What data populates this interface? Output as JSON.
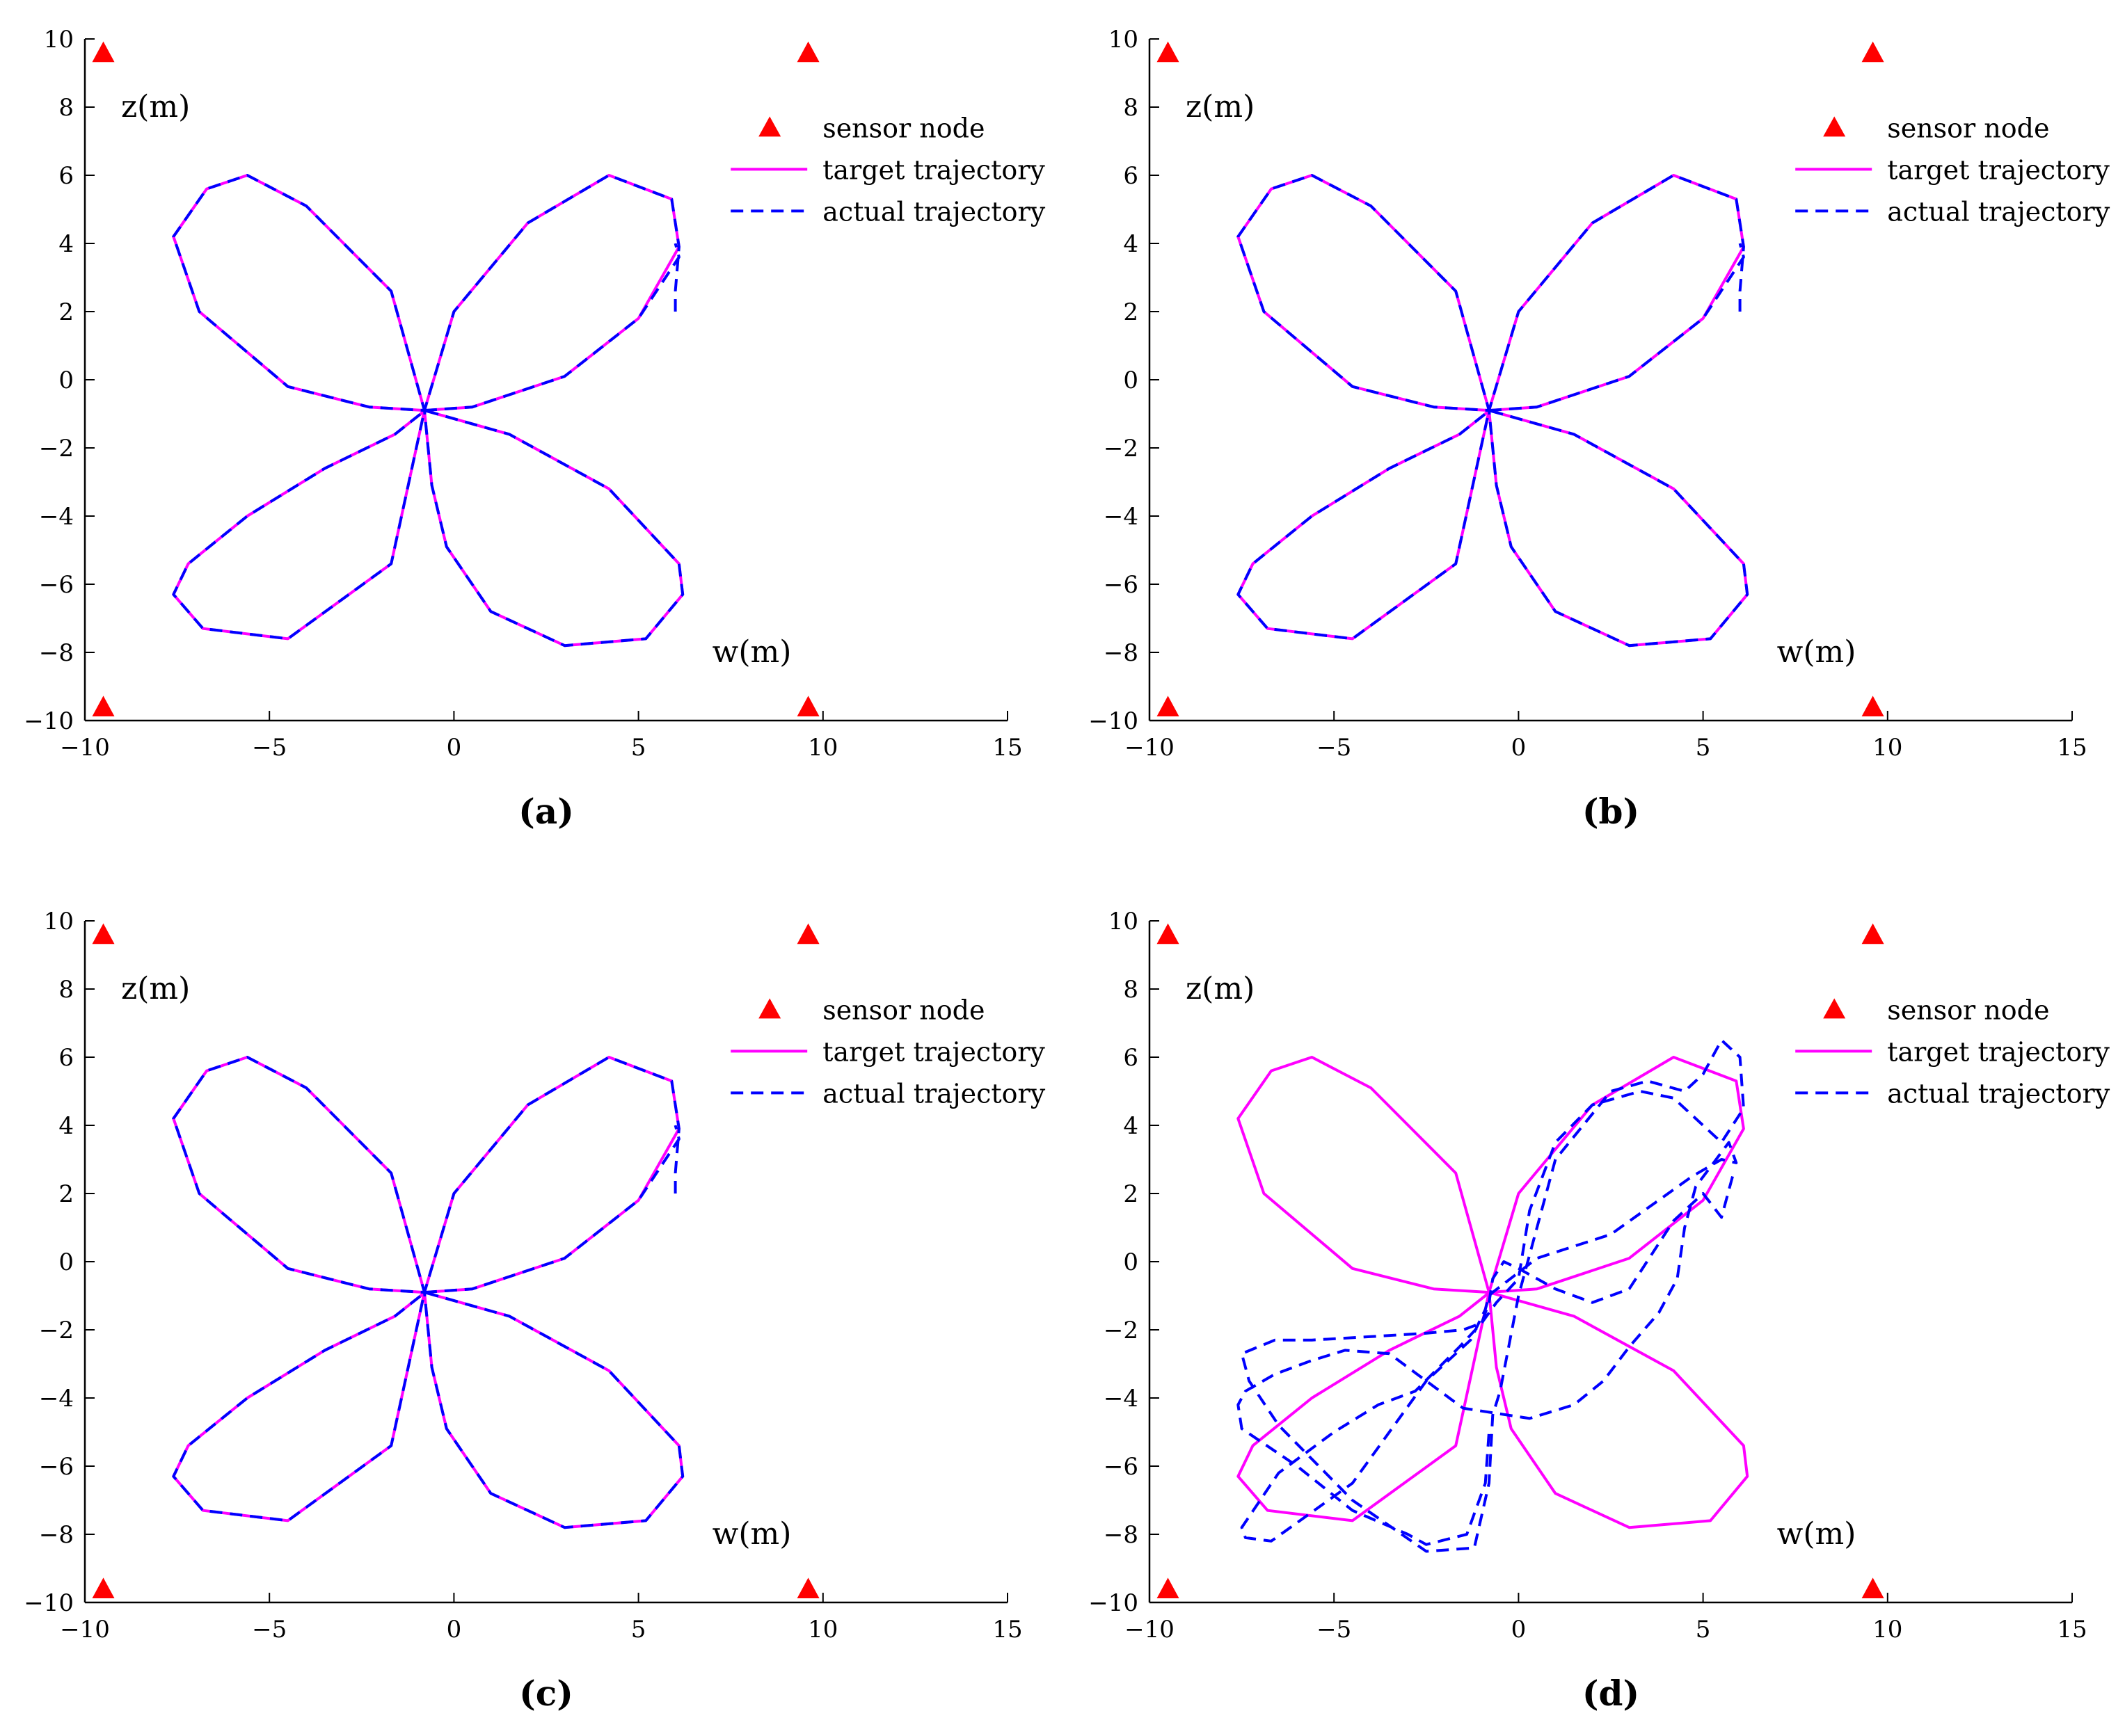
{
  "chart_data": [
    {
      "panel_label": "(a)",
      "type": "line",
      "xlabel": "w(m)",
      "ylabel": "z(m)",
      "xlim": [
        -10,
        15
      ],
      "ylim": [
        -10,
        10
      ],
      "xticks": [
        -10,
        -5,
        0,
        5,
        10,
        15
      ],
      "yticks": [
        -10,
        -8,
        -6,
        -4,
        -2,
        0,
        2,
        4,
        6,
        8,
        10
      ],
      "grid": false,
      "legend_position": "top-right",
      "legend": [
        "sensor node",
        "target trajectory",
        "actual trajectory"
      ],
      "sensor_nodes": [
        [
          -9.5,
          9.6
        ],
        [
          9.6,
          9.6
        ],
        [
          -9.5,
          -9.6
        ],
        [
          9.6,
          -9.6
        ]
      ],
      "series": [
        {
          "name": "target trajectory",
          "style": "solid",
          "color": "#ff00ff",
          "x": [
            -0.8,
            0.0,
            2.0,
            4.2,
            5.9,
            6.1,
            5.0,
            3.0,
            0.5,
            -0.8,
            -2.3,
            -4.5,
            -6.9,
            -7.6,
            -6.7,
            -5.6,
            -4.0,
            -1.7,
            -0.8,
            -0.6,
            -0.2,
            1.0,
            3.0,
            5.2,
            6.2,
            6.1,
            4.2,
            1.5,
            -0.8,
            -0.9,
            -1.6,
            -3.5,
            -5.6,
            -7.2,
            -7.6,
            -6.8,
            -4.5,
            -1.7,
            -0.8
          ],
          "y": [
            -0.9,
            2.0,
            4.6,
            6.0,
            5.3,
            3.9,
            1.8,
            0.1,
            -0.8,
            -0.9,
            -0.8,
            -0.2,
            2.0,
            4.2,
            5.6,
            6.0,
            5.1,
            2.6,
            -0.9,
            -3.1,
            -4.9,
            -6.8,
            -7.8,
            -7.6,
            -6.3,
            -5.4,
            -3.2,
            -1.6,
            -0.9,
            -1.0,
            -1.6,
            -2.6,
            -4.0,
            -5.4,
            -6.3,
            -7.3,
            -7.6,
            -5.4,
            -0.9
          ]
        },
        {
          "name": "actual trajectory",
          "style": "dashed",
          "color": "#0000ff",
          "x": [
            6.0,
            6.0,
            6.1,
            5.9,
            4.2,
            2.0,
            0.0,
            -0.8,
            -2.3,
            -4.5,
            -6.9,
            -7.6,
            -6.7,
            -5.6,
            -4.0,
            -1.7,
            -0.8,
            -0.6,
            -0.2,
            1.0,
            3.0,
            5.2,
            6.2,
            6.1,
            4.2,
            1.5,
            -0.8,
            -0.9,
            -1.6,
            -3.5,
            -5.6,
            -7.2,
            -7.6,
            -6.8,
            -4.5,
            -1.7,
            -0.8,
            0.5,
            3.0,
            5.0,
            6.1,
            6.0
          ],
          "y": [
            2.0,
            2.6,
            3.9,
            5.3,
            6.0,
            4.6,
            2.0,
            -0.9,
            -0.8,
            -0.2,
            2.0,
            4.2,
            5.6,
            6.0,
            5.1,
            2.6,
            -0.9,
            -3.1,
            -4.9,
            -6.8,
            -7.8,
            -7.6,
            -6.3,
            -5.4,
            -3.2,
            -1.6,
            -0.9,
            -1.0,
            -1.6,
            -2.6,
            -4.0,
            -5.4,
            -6.3,
            -7.3,
            -7.6,
            -5.4,
            -0.9,
            -0.8,
            0.1,
            1.8,
            3.6,
            4.0
          ]
        }
      ]
    },
    {
      "panel_label": "(b)",
      "type": "line",
      "xlabel": "w(m)",
      "ylabel": "z(m)",
      "xlim": [
        -10,
        15
      ],
      "ylim": [
        -10,
        10
      ],
      "xticks": [
        -10,
        -5,
        0,
        5,
        10,
        15
      ],
      "yticks": [
        -10,
        -8,
        -6,
        -4,
        -2,
        0,
        2,
        4,
        6,
        8,
        10
      ],
      "grid": false,
      "legend_position": "top-right",
      "legend": [
        "sensor node",
        "target trajectory",
        "actual trajectory"
      ],
      "sensor_nodes": [
        [
          -9.5,
          9.6
        ],
        [
          9.6,
          9.6
        ],
        [
          -9.5,
          -9.6
        ],
        [
          9.6,
          -9.6
        ]
      ],
      "series": [
        {
          "name": "target trajectory",
          "style": "solid",
          "color": "#ff00ff",
          "x": [
            -0.8,
            0.0,
            2.0,
            4.2,
            5.9,
            6.1,
            5.0,
            3.0,
            0.5,
            -0.8,
            -2.3,
            -4.5,
            -6.9,
            -7.6,
            -6.7,
            -5.6,
            -4.0,
            -1.7,
            -0.8,
            -0.6,
            -0.2,
            1.0,
            3.0,
            5.2,
            6.2,
            6.1,
            4.2,
            1.5,
            -0.8,
            -0.9,
            -1.6,
            -3.5,
            -5.6,
            -7.2,
            -7.6,
            -6.8,
            -4.5,
            -1.7,
            -0.8
          ],
          "y": [
            -0.9,
            2.0,
            4.6,
            6.0,
            5.3,
            3.9,
            1.8,
            0.1,
            -0.8,
            -0.9,
            -0.8,
            -0.2,
            2.0,
            4.2,
            5.6,
            6.0,
            5.1,
            2.6,
            -0.9,
            -3.1,
            -4.9,
            -6.8,
            -7.8,
            -7.6,
            -6.3,
            -5.4,
            -3.2,
            -1.6,
            -0.9,
            -1.0,
            -1.6,
            -2.6,
            -4.0,
            -5.4,
            -6.3,
            -7.3,
            -7.6,
            -5.4,
            -0.9
          ]
        },
        {
          "name": "actual trajectory",
          "style": "dashed",
          "color": "#0000ff",
          "x": [
            6.0,
            6.0,
            6.1,
            5.9,
            4.2,
            2.0,
            0.0,
            -0.8,
            -2.3,
            -4.5,
            -6.9,
            -7.6,
            -6.7,
            -5.6,
            -4.0,
            -1.7,
            -0.8,
            -0.6,
            -0.2,
            1.0,
            3.0,
            5.2,
            6.2,
            6.1,
            4.2,
            1.5,
            -0.8,
            -0.9,
            -1.6,
            -3.5,
            -5.6,
            -7.2,
            -7.6,
            -6.8,
            -4.5,
            -1.7,
            -0.8,
            0.5,
            3.0,
            5.0,
            6.1,
            6.0
          ],
          "y": [
            2.0,
            2.6,
            3.9,
            5.3,
            6.0,
            4.6,
            2.0,
            -0.9,
            -0.8,
            -0.2,
            2.0,
            4.2,
            5.6,
            6.0,
            5.1,
            2.6,
            -0.9,
            -3.1,
            -4.9,
            -6.8,
            -7.8,
            -7.6,
            -6.3,
            -5.4,
            -3.2,
            -1.6,
            -0.9,
            -1.0,
            -1.6,
            -2.6,
            -4.0,
            -5.4,
            -6.3,
            -7.3,
            -7.6,
            -5.4,
            -0.9,
            -0.8,
            0.1,
            1.8,
            3.6,
            4.0
          ]
        }
      ]
    },
    {
      "panel_label": "(c)",
      "type": "line",
      "xlabel": "w(m)",
      "ylabel": "z(m)",
      "xlim": [
        -10,
        15
      ],
      "ylim": [
        -10,
        10
      ],
      "xticks": [
        -10,
        -5,
        0,
        5,
        10,
        15
      ],
      "yticks": [
        -10,
        -8,
        -6,
        -4,
        -2,
        0,
        2,
        4,
        6,
        8,
        10
      ],
      "grid": false,
      "legend_position": "top-right",
      "legend": [
        "sensor node",
        "target trajectory",
        "actual trajectory"
      ],
      "sensor_nodes": [
        [
          -9.5,
          9.6
        ],
        [
          9.6,
          9.6
        ],
        [
          -9.5,
          -9.6
        ],
        [
          9.6,
          -9.6
        ]
      ],
      "series": [
        {
          "name": "target trajectory",
          "style": "solid",
          "color": "#ff00ff",
          "x": [
            -0.8,
            0.0,
            2.0,
            4.2,
            5.9,
            6.1,
            5.0,
            3.0,
            0.5,
            -0.8,
            -2.3,
            -4.5,
            -6.9,
            -7.6,
            -6.7,
            -5.6,
            -4.0,
            -1.7,
            -0.8,
            -0.6,
            -0.2,
            1.0,
            3.0,
            5.2,
            6.2,
            6.1,
            4.2,
            1.5,
            -0.8,
            -0.9,
            -1.6,
            -3.5,
            -5.6,
            -7.2,
            -7.6,
            -6.8,
            -4.5,
            -1.7,
            -0.8
          ],
          "y": [
            -0.9,
            2.0,
            4.6,
            6.0,
            5.3,
            3.9,
            1.8,
            0.1,
            -0.8,
            -0.9,
            -0.8,
            -0.2,
            2.0,
            4.2,
            5.6,
            6.0,
            5.1,
            2.6,
            -0.9,
            -3.1,
            -4.9,
            -6.8,
            -7.8,
            -7.6,
            -6.3,
            -5.4,
            -3.2,
            -1.6,
            -0.9,
            -1.0,
            -1.6,
            -2.6,
            -4.0,
            -5.4,
            -6.3,
            -7.3,
            -7.6,
            -5.4,
            -0.9
          ]
        },
        {
          "name": "actual trajectory",
          "style": "dashed",
          "color": "#0000ff",
          "x": [
            6.0,
            6.0,
            6.1,
            5.9,
            4.2,
            2.0,
            0.0,
            -0.8,
            -2.3,
            -4.5,
            -6.9,
            -7.6,
            -6.7,
            -5.6,
            -4.0,
            -1.7,
            -0.8,
            -0.6,
            -0.2,
            1.0,
            3.0,
            5.2,
            6.2,
            6.1,
            4.2,
            1.5,
            -0.8,
            -0.9,
            -1.6,
            -3.5,
            -5.6,
            -7.2,
            -7.6,
            -6.8,
            -4.5,
            -1.7,
            -0.8,
            0.5,
            3.0,
            5.0,
            6.1,
            6.0
          ],
          "y": [
            2.0,
            2.6,
            3.9,
            5.3,
            6.0,
            4.6,
            2.0,
            -0.9,
            -0.8,
            -0.2,
            2.0,
            4.2,
            5.6,
            6.0,
            5.1,
            2.6,
            -0.9,
            -3.1,
            -4.9,
            -6.8,
            -7.8,
            -7.6,
            -6.3,
            -5.4,
            -3.2,
            -1.6,
            -0.9,
            -1.0,
            -1.6,
            -2.6,
            -4.0,
            -5.4,
            -6.3,
            -7.3,
            -7.6,
            -5.4,
            -0.9,
            -0.8,
            0.1,
            1.8,
            3.6,
            4.0
          ]
        }
      ]
    },
    {
      "panel_label": "(d)",
      "type": "line",
      "xlabel": "w(m)",
      "ylabel": "z(m)",
      "xlim": [
        -10,
        15
      ],
      "ylim": [
        -10,
        10
      ],
      "xticks": [
        -10,
        -5,
        0,
        5,
        10,
        15
      ],
      "yticks": [
        -10,
        -8,
        -6,
        -4,
        -2,
        0,
        2,
        4,
        6,
        8,
        10
      ],
      "grid": false,
      "legend_position": "top-right",
      "legend": [
        "sensor node",
        "target trajectory",
        "actual trajectory"
      ],
      "sensor_nodes": [
        [
          -9.5,
          9.6
        ],
        [
          9.6,
          9.6
        ],
        [
          -9.5,
          -9.6
        ],
        [
          9.6,
          -9.6
        ]
      ],
      "series": [
        {
          "name": "target trajectory",
          "style": "solid",
          "color": "#ff00ff",
          "x": [
            -0.8,
            0.0,
            2.0,
            4.2,
            5.9,
            6.1,
            5.0,
            3.0,
            0.5,
            -0.8,
            -2.3,
            -4.5,
            -6.9,
            -7.6,
            -6.7,
            -5.6,
            -4.0,
            -1.7,
            -0.8,
            -0.6,
            -0.2,
            1.0,
            3.0,
            5.2,
            6.2,
            6.1,
            4.2,
            1.5,
            -0.8,
            -0.9,
            -1.6,
            -3.5,
            -5.6,
            -7.2,
            -7.6,
            -6.8,
            -4.5,
            -1.7,
            -0.8
          ],
          "y": [
            -0.9,
            2.0,
            4.6,
            6.0,
            5.3,
            3.9,
            1.8,
            0.1,
            -0.8,
            -0.9,
            -0.8,
            -0.2,
            2.0,
            4.2,
            5.6,
            6.0,
            5.1,
            2.6,
            -0.9,
            -3.1,
            -4.9,
            -6.8,
            -7.8,
            -7.6,
            -6.3,
            -5.4,
            -3.2,
            -1.6,
            -0.9,
            -1.0,
            -1.6,
            -2.6,
            -4.0,
            -5.4,
            -6.3,
            -7.3,
            -7.6,
            -5.4,
            -0.9
          ]
        },
        {
          "name": "actual trajectory",
          "style": "dashed",
          "color": "#0000ff",
          "x": [
            5.8,
            5.5,
            5.0,
            4.2,
            3.0,
            2.0,
            1.0,
            0.0,
            -0.4,
            -0.7,
            -0.8,
            -1.0,
            -1.5,
            -2.5,
            -4.0,
            -5.6,
            -6.6,
            -7.5,
            -7.3,
            -6.5,
            -4.5,
            -2.5,
            -1.2,
            -0.8,
            -0.7,
            -0.5,
            0.0,
            1.0,
            2.5,
            3.5,
            4.5,
            5.0,
            5.5,
            6.0,
            6.1,
            5.5,
            5.0,
            4.2,
            3.3,
            2.0,
            1.0,
            0.3,
            0.0,
            -0.6,
            -1.0,
            -1.6,
            -2.8,
            -3.8,
            -5.0,
            -6.5,
            -7.5,
            -7.4,
            -6.7,
            -4.5,
            -2.5,
            -1.3,
            -0.9,
            -0.8,
            -0.7,
            0.5,
            2.5,
            4.7,
            5.5,
            5.9,
            5.7,
            4.8,
            4.5,
            4.3,
            3.8,
            3.0,
            2.3,
            1.5,
            0.3,
            -1.5,
            -3.5,
            -4.7,
            -5.6,
            -6.6,
            -7.4,
            -7.6,
            -7.5,
            -6.0,
            -4.5,
            -3.0,
            -2.5,
            -1.4,
            -0.9,
            -0.8
          ],
          "y": [
            2.5,
            1.3,
            2.0,
            1.2,
            -0.8,
            -1.2,
            -0.8,
            -0.2,
            0.0,
            -0.5,
            -1.2,
            -1.8,
            -2.0,
            -2.1,
            -2.2,
            -2.3,
            -2.3,
            -2.7,
            -3.5,
            -4.8,
            -7.0,
            -8.5,
            -8.4,
            -6.5,
            -4.5,
            -3.8,
            -1.0,
            3.0,
            5.0,
            5.3,
            5.0,
            5.5,
            6.5,
            6.0,
            4.5,
            3.5,
            4.0,
            4.8,
            5.0,
            4.6,
            3.5,
            1.5,
            -0.5,
            -1.2,
            -1.8,
            -2.5,
            -3.8,
            -4.2,
            -5.0,
            -6.2,
            -7.8,
            -8.1,
            -8.2,
            -6.5,
            -3.5,
            -2.3,
            -1.4,
            -1.0,
            -0.9,
            0.1,
            0.8,
            2.5,
            3.0,
            2.9,
            3.5,
            2.2,
            1.0,
            -0.5,
            -1.5,
            -2.5,
            -3.5,
            -4.2,
            -4.6,
            -4.3,
            -2.7,
            -2.6,
            -2.9,
            -3.3,
            -3.8,
            -4.2,
            -4.9,
            -6.0,
            -7.3,
            -8.0,
            -8.3,
            -8.0,
            -6.5,
            -5.0
          ]
        }
      ]
    }
  ]
}
